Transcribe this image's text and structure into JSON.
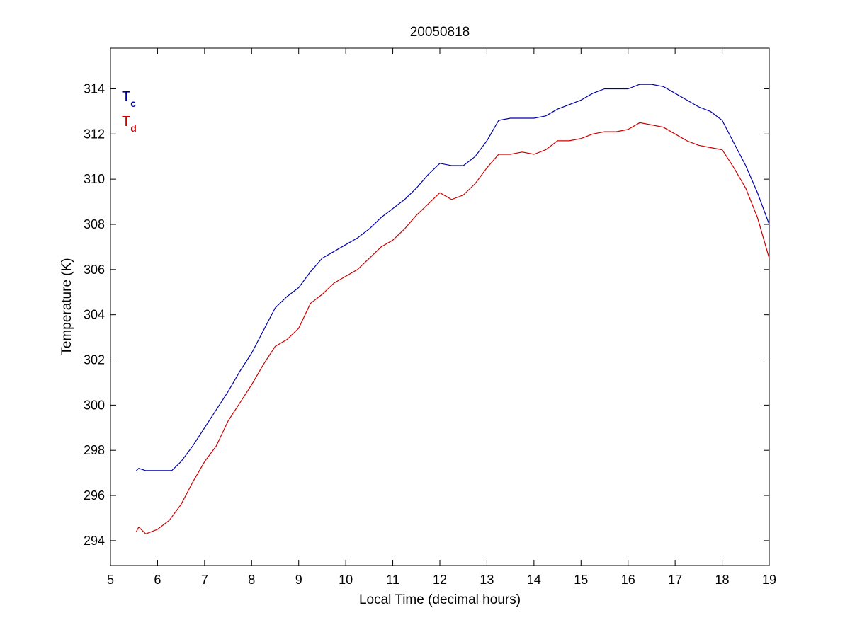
{
  "chart_data": {
    "type": "line",
    "title": "20050818",
    "xlabel": "Local Time (decimal hours)",
    "ylabel": "Temperature (K)",
    "xlim": [
      5,
      19
    ],
    "ylim": [
      292.9,
      315.8
    ],
    "xticks": [
      5,
      6,
      7,
      8,
      9,
      10,
      11,
      12,
      13,
      14,
      15,
      16,
      17,
      18,
      19
    ],
    "yticks": [
      294,
      296,
      298,
      300,
      302,
      304,
      306,
      308,
      310,
      312,
      314
    ],
    "grid": false,
    "legend_placement": "top-left",
    "series": [
      {
        "name": "T",
        "subscript": "c",
        "color": "#0000aa",
        "x": [
          5.55,
          5.6,
          5.75,
          6.0,
          6.3,
          6.5,
          6.75,
          7.0,
          7.25,
          7.5,
          7.75,
          8.0,
          8.25,
          8.5,
          8.75,
          9.0,
          9.25,
          9.5,
          9.75,
          10.0,
          10.25,
          10.5,
          10.75,
          11.0,
          11.25,
          11.5,
          11.75,
          12.0,
          12.25,
          12.5,
          12.75,
          13.0,
          13.25,
          13.5,
          13.75,
          14.0,
          14.25,
          14.5,
          14.75,
          15.0,
          15.25,
          15.5,
          15.75,
          16.0,
          16.25,
          16.5,
          16.75,
          17.0,
          17.25,
          17.5,
          17.75,
          18.0,
          18.25,
          18.5,
          18.75,
          19.0
        ],
        "y": [
          297.1,
          297.2,
          297.1,
          297.1,
          297.1,
          297.5,
          298.2,
          299.0,
          299.8,
          300.6,
          301.5,
          302.3,
          303.3,
          304.3,
          304.8,
          305.2,
          305.9,
          306.5,
          306.8,
          307.1,
          307.4,
          307.8,
          308.3,
          308.7,
          309.1,
          309.6,
          310.2,
          310.7,
          310.6,
          310.6,
          311.0,
          311.7,
          312.6,
          312.7,
          312.7,
          312.7,
          312.8,
          313.1,
          313.3,
          313.5,
          313.8,
          314.0,
          314.0,
          314.0,
          314.2,
          314.2,
          314.1,
          313.8,
          313.5,
          313.2,
          313.0,
          312.6,
          311.6,
          310.6,
          309.4,
          308.0
        ]
      },
      {
        "name": "T",
        "subscript": "d",
        "color": "#cc0000",
        "x": [
          5.55,
          5.6,
          5.75,
          6.0,
          6.25,
          6.5,
          6.75,
          7.0,
          7.25,
          7.5,
          7.75,
          8.0,
          8.25,
          8.5,
          8.75,
          9.0,
          9.25,
          9.5,
          9.75,
          10.0,
          10.25,
          10.5,
          10.75,
          11.0,
          11.25,
          11.5,
          11.75,
          12.0,
          12.25,
          12.5,
          12.75,
          13.0,
          13.25,
          13.5,
          13.75,
          14.0,
          14.25,
          14.5,
          14.75,
          15.0,
          15.25,
          15.5,
          15.75,
          16.0,
          16.25,
          16.5,
          16.75,
          17.0,
          17.25,
          17.5,
          17.75,
          18.0,
          18.25,
          18.5,
          18.75,
          19.0
        ],
        "y": [
          294.4,
          294.6,
          294.3,
          294.5,
          294.9,
          295.6,
          296.6,
          297.5,
          298.2,
          299.3,
          300.1,
          300.9,
          301.8,
          302.6,
          302.9,
          303.4,
          304.5,
          304.9,
          305.4,
          305.7,
          306.0,
          306.5,
          307.0,
          307.3,
          307.8,
          308.4,
          308.9,
          309.4,
          309.1,
          309.3,
          309.8,
          310.5,
          311.1,
          311.1,
          311.2,
          311.1,
          311.3,
          311.7,
          311.7,
          311.8,
          312.0,
          312.1,
          312.1,
          312.2,
          312.5,
          312.4,
          312.3,
          312.0,
          311.7,
          311.5,
          311.4,
          311.3,
          310.5,
          309.6,
          308.3,
          306.5
        ]
      }
    ]
  }
}
